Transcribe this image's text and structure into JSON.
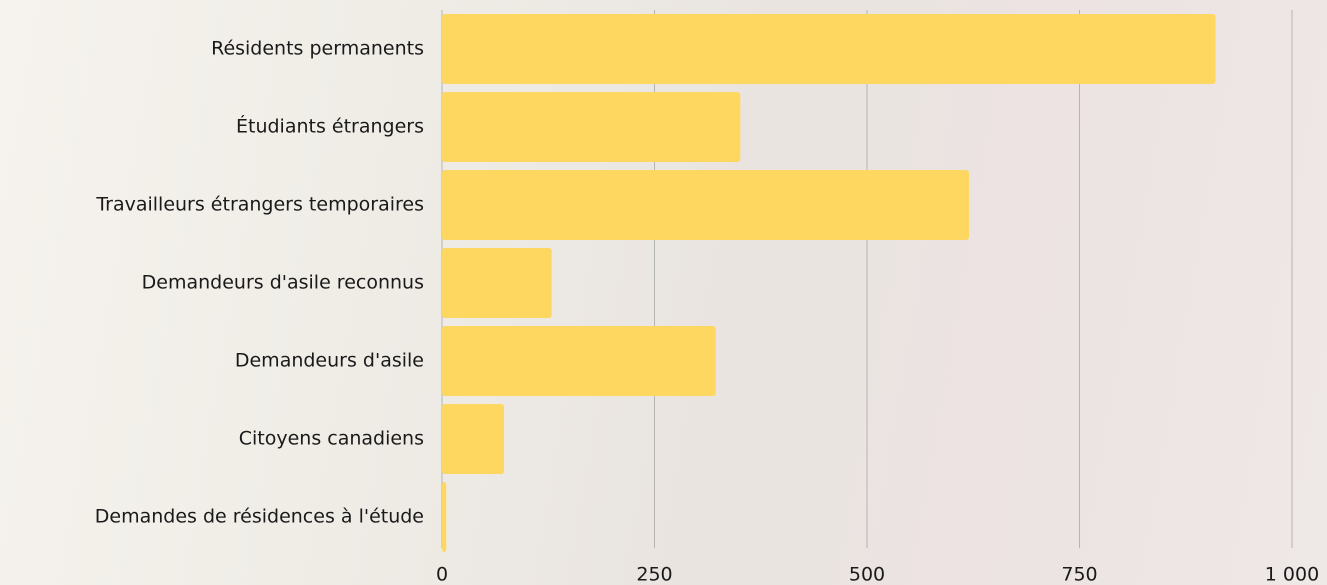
{
  "chart_data": {
    "type": "bar",
    "orientation": "horizontal",
    "categories": [
      "Résidents permanents",
      "Étudiants étrangers",
      "Travailleurs étrangers temporaires",
      "Demandeurs d'asile reconnus",
      "Demandeurs d'asile",
      "Citoyens canadiens",
      "Demandes de résidences à l'étude"
    ],
    "values": [
      910,
      351,
      620,
      129,
      322,
      73,
      5
    ],
    "color": "#fdd75f",
    "xlim": [
      0,
      1000
    ],
    "xticks": [
      0,
      250,
      500,
      750,
      {
        "value": 1000,
        "label": "1 000"
      }
    ],
    "grid": true
  }
}
